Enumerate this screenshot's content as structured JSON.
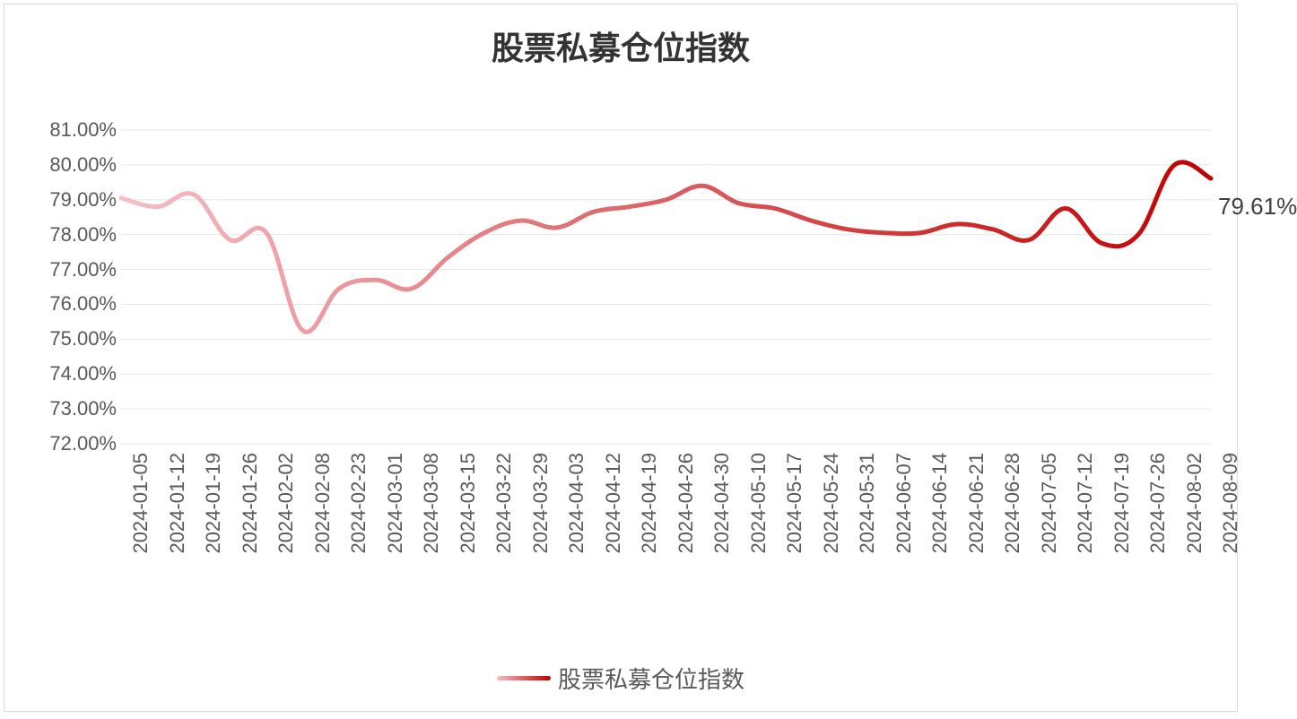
{
  "chart": {
    "type": "line",
    "title": "股票私募仓位指数",
    "title_fontsize": 36,
    "title_color": "#333333",
    "background_color": "#ffffff",
    "border_color": "#d9d9d9",
    "grid_color": "#e6e6e6",
    "tick_label_color": "#595959",
    "tick_label_fontsize": 22,
    "y_axis": {
      "min": 72.0,
      "max": 81.0,
      "tick_step": 1.0,
      "tick_format_suffix": "%",
      "tick_decimals": 2,
      "ticks": [
        "81.00%",
        "80.00%",
        "79.00%",
        "78.00%",
        "77.00%",
        "76.00%",
        "75.00%",
        "74.00%",
        "73.00%",
        "72.00%"
      ]
    },
    "x_axis": {
      "categories": [
        "2024-01-05",
        "2024-01-12",
        "2024-01-19",
        "2024-01-26",
        "2024-02-02",
        "2024-02-08",
        "2024-02-23",
        "2024-03-01",
        "2024-03-08",
        "2024-03-15",
        "2024-03-22",
        "2024-03-29",
        "2024-04-03",
        "2024-04-12",
        "2024-04-19",
        "2024-04-26",
        "2024-04-30",
        "2024-05-10",
        "2024-05-17",
        "2024-05-24",
        "2024-05-31",
        "2024-06-07",
        "2024-06-14",
        "2024-06-21",
        "2024-06-28",
        "2024-07-05",
        "2024-07-12",
        "2024-07-19",
        "2024-07-26",
        "2024-08-02",
        "2024-08-09"
      ],
      "label_rotation_deg": -90
    },
    "series": {
      "name": "股票私募仓位指数",
      "values": [
        79.05,
        78.8,
        79.15,
        77.85,
        78.05,
        75.25,
        76.45,
        76.7,
        76.45,
        77.35,
        78.05,
        78.4,
        78.2,
        78.65,
        78.8,
        79.0,
        79.4,
        78.9,
        78.75,
        78.4,
        78.15,
        78.05,
        78.05,
        78.3,
        78.15,
        77.85,
        78.75,
        77.75,
        78.0,
        80.0,
        79.61
      ],
      "line_width": 5,
      "smooth": true,
      "color_gradient_start": "#f5bfc6",
      "color_gradient_end": "#c00000"
    },
    "data_label": {
      "text": "79.61%",
      "fontsize": 26,
      "color": "#404040",
      "point_index": 30
    },
    "legend": {
      "label": "股票私募仓位指数",
      "fontsize": 26,
      "color": "#595959",
      "line_gradient_start": "#f5bfc6",
      "line_gradient_end": "#c00000",
      "position": "bottom-center"
    }
  }
}
